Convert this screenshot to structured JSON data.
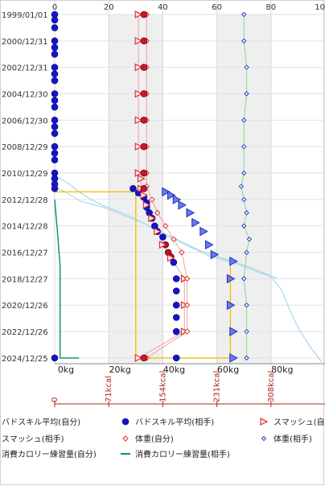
{
  "chart_data": {
    "type": "scatter",
    "title": "",
    "y_axis": {
      "type": "date",
      "range": [
        "1999/01/01",
        "2025/06/01"
      ],
      "tick_labels": [
        "1999/01/01",
        "2000/12/31",
        "2002/12/31",
        "2004/12/30",
        "2006/12/30",
        "2008/12/29",
        "2010/12/29",
        "2012/12/28",
        "2014/12/28",
        "2016/12/27",
        "2018/12/27",
        "2020/12/26",
        "2022/12/26",
        "2024/12/25"
      ]
    },
    "x_axis_top": {
      "range": [
        0,
        100
      ],
      "tick_labels": [
        "0",
        "20",
        "40",
        "60",
        "80",
        "10"
      ]
    },
    "x_axis_bottom": {
      "range_kg": [
        0,
        100
      ],
      "tick_labels": [
        "0kg",
        "20kg",
        "40kg",
        "60kg",
        "80kg"
      ]
    },
    "x_axis_kcal": {
      "tick_labels": [
        "0",
        "71kcal",
        "154kcal",
        "231kcal",
        "308kcal"
      ]
    },
    "grid": true,
    "legend_position": "bottom",
    "series": [
      {
        "name": "バドスキル平均(自分)",
        "color": "#1414c8",
        "marker": "circle-filled",
        "points": [
          [
            0,
            "1999/01/01"
          ],
          [
            0,
            "1999/06/01"
          ],
          [
            0,
            "2000/01/01"
          ],
          [
            0,
            "2000/12/31"
          ],
          [
            0,
            "2001/07/01"
          ],
          [
            0,
            "2002/01/01"
          ],
          [
            0,
            "2002/12/31"
          ],
          [
            0,
            "2003/07/01"
          ],
          [
            0,
            "2004/01/01"
          ],
          [
            0,
            "2004/12/30"
          ],
          [
            0,
            "2005/07/01"
          ],
          [
            0,
            "2006/01/01"
          ],
          [
            0,
            "2006/12/30"
          ],
          [
            0,
            "2007/07/01"
          ],
          [
            0,
            "2008/01/01"
          ],
          [
            0,
            "2008/12/29"
          ],
          [
            0,
            "2009/07/01"
          ],
          [
            0,
            "2010/01/01"
          ],
          [
            0,
            "2010/12/29"
          ],
          [
            0,
            "2011/06/01"
          ],
          [
            0,
            "2011/11/01"
          ],
          [
            0,
            "2012/03/01"
          ],
          [
            0,
            "2024/12/25"
          ]
        ]
      },
      {
        "name": "バドスキル平均(相手)",
        "color": "#1414c8",
        "marker": "circle-filled",
        "points": [
          [
            29,
            "2012/03/01"
          ],
          [
            31,
            "2012/07/01"
          ],
          [
            33,
            "2012/11/01"
          ],
          [
            34,
            "2013/04/01"
          ],
          [
            34,
            "2013/08/01"
          ],
          [
            35,
            "2014/01/01"
          ],
          [
            36,
            "2014/06/01"
          ],
          [
            37,
            "2015/01/01"
          ],
          [
            38,
            "2015/06/01"
          ],
          [
            40,
            "2015/11/01"
          ],
          [
            41,
            "2016/06/01"
          ],
          [
            42,
            "2017/01/01"
          ],
          [
            43,
            "2017/05/01"
          ],
          [
            44,
            "2017/10/01"
          ],
          [
            45,
            "2018/12/27"
          ],
          [
            45,
            "2019/12/01"
          ],
          [
            45,
            "2020/12/26"
          ],
          [
            45,
            "2021/12/01"
          ],
          [
            45,
            "2022/12/26"
          ],
          [
            45,
            "2024/12/25"
          ]
        ]
      },
      {
        "name": "スマッシュ(自分)",
        "color": "#d01c1c",
        "marker": "triangle-right-open",
        "points": [
          [
            31,
            "1999/01/01"
          ],
          [
            31,
            "2000/12/31"
          ],
          [
            31,
            "2002/12/31"
          ],
          [
            31,
            "2004/12/30"
          ],
          [
            31,
            "2006/12/30"
          ],
          [
            31,
            "2008/12/29"
          ],
          [
            31,
            "2010/12/29"
          ],
          [
            32,
            "2011/06/01"
          ],
          [
            32,
            "2012/03/01"
          ],
          [
            33,
            "2012/09/01"
          ],
          [
            34,
            "2013/06/01"
          ],
          [
            36,
            "2014/06/01"
          ],
          [
            38,
            "2015/06/01"
          ],
          [
            40,
            "2016/06/01"
          ],
          [
            43,
            "2017/06/01"
          ],
          [
            48,
            "2018/12/27"
          ],
          [
            48,
            "2020/12/26"
          ],
          [
            48,
            "2022/12/26"
          ],
          [
            31,
            "2024/12/25"
          ]
        ]
      },
      {
        "name": "スマッシュ(相手)",
        "color": "#1c2cc0",
        "marker": "triangle-right-filled",
        "points": [
          [
            41,
            "2012/06/01"
          ],
          [
            43,
            "2012/09/01"
          ],
          [
            45,
            "2013/01/01"
          ],
          [
            47,
            "2013/06/01"
          ],
          [
            50,
            "2014/01/01"
          ],
          [
            52,
            "2014/10/01"
          ],
          [
            55,
            "2015/06/01"
          ],
          [
            57,
            "2016/06/01"
          ],
          [
            59,
            "2017/03/01"
          ],
          [
            66,
            "2017/09/01"
          ],
          [
            65,
            "2018/12/27"
          ],
          [
            65,
            "2020/12/26"
          ],
          [
            66,
            "2022/12/26"
          ],
          [
            66,
            "2024/12/25"
          ]
        ]
      },
      {
        "name": "体重(自分)",
        "color": "#e03030",
        "marker": "diamond-open",
        "points": [
          [
            34,
            "1999/01/01"
          ],
          [
            34,
            "2000/12/31"
          ],
          [
            34,
            "2002/12/31"
          ],
          [
            34,
            "2004/12/30"
          ],
          [
            34,
            "2006/12/30"
          ],
          [
            34,
            "2008/12/29"
          ],
          [
            34,
            "2010/12/29"
          ],
          [
            34,
            "2012/01/01"
          ],
          [
            36,
            "2013/01/01"
          ],
          [
            38,
            "2014/01/01"
          ],
          [
            41,
            "2015/01/01"
          ],
          [
            44,
            "2016/01/01"
          ],
          [
            47,
            "2017/01/01"
          ],
          [
            49,
            "2018/12/27"
          ],
          [
            49,
            "2020/12/26"
          ],
          [
            49,
            "2022/12/26"
          ],
          [
            34,
            "2024/12/25"
          ]
        ]
      },
      {
        "name": "体重(相手)",
        "color": "#2040d0",
        "marker": "diamond-filled",
        "points": [
          [
            70,
            "1999/01/01"
          ],
          [
            70,
            "2000/12/31"
          ],
          [
            71,
            "2002/12/31"
          ],
          [
            71,
            "2004/12/30"
          ],
          [
            70,
            "2006/12/30"
          ],
          [
            70,
            "2008/12/29"
          ],
          [
            70,
            "2010/12/29"
          ],
          [
            69,
            "2012/01/01"
          ],
          [
            70,
            "2013/01/01"
          ],
          [
            71,
            "2014/01/01"
          ],
          [
            70,
            "2015/01/01"
          ],
          [
            72,
            "2016/01/01"
          ],
          [
            71,
            "2017/01/01"
          ],
          [
            70,
            "2018/12/27"
          ],
          [
            71,
            "2020/12/26"
          ],
          [
            71,
            "2022/12/26"
          ],
          [
            71,
            "2024/12/25"
          ]
        ]
      },
      {
        "name": "消費カロリー練習量(自分)",
        "color": "#f0c000",
        "marker": "line",
        "points": [
          [
            0,
            "2012/06/01"
          ],
          [
            30,
            "2012/06/01"
          ],
          [
            30,
            "2024/12/25"
          ],
          [
            65,
            "2024/12/25"
          ],
          [
            65,
            "2018/01/01"
          ]
        ]
      },
      {
        "name": "消費カロリー練習量(相手)",
        "color": "#009070",
        "marker": "line",
        "points": [
          [
            0,
            "2013/01/01"
          ],
          [
            1,
            "2015/06/01"
          ],
          [
            2,
            "2018/01/01"
          ],
          [
            2,
            "2024/12/25"
          ],
          [
            9,
            "2024/12/25"
          ]
        ]
      }
    ]
  }
}
